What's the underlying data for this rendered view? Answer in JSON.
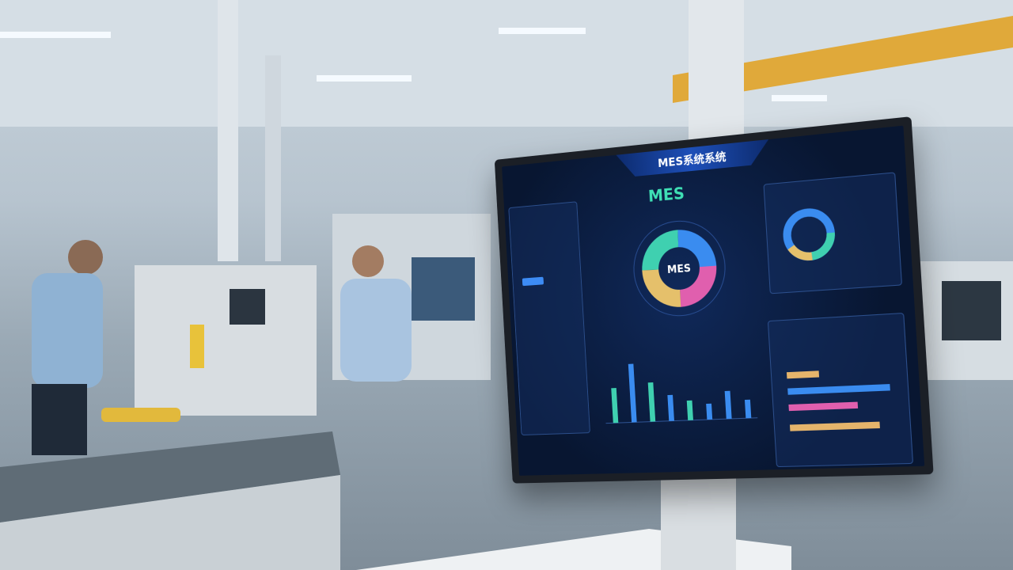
{
  "screen": {
    "title": "MES系统系统",
    "heading": "MES",
    "donut_label": "MES"
  }
}
